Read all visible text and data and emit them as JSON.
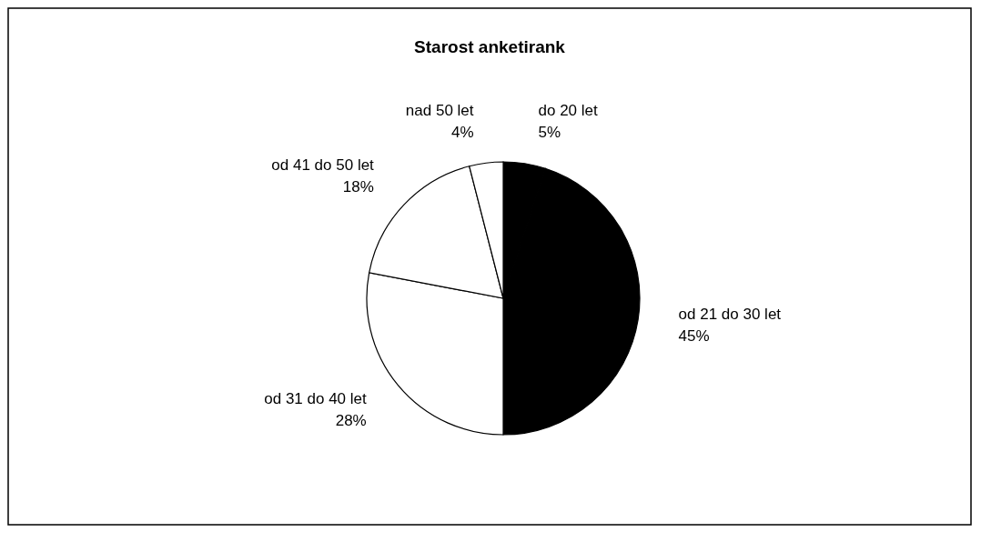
{
  "chart_data": {
    "type": "pie",
    "title": "Starost anketirank",
    "categories": [
      "do 20 let",
      "od 21 do 30 let",
      "od 31 do 40 let",
      "od 41 do 50 let",
      "nad 50 let"
    ],
    "values": [
      5,
      45,
      28,
      18,
      4
    ],
    "value_labels": [
      "5%",
      "45%",
      "28%",
      "18%",
      "4%"
    ],
    "colors": [
      "#000000",
      "#000000",
      "#ffffff",
      "#ffffff",
      "#ffffff"
    ]
  }
}
